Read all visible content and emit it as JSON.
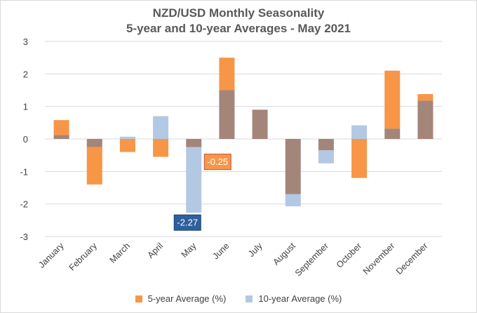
{
  "chart_data": {
    "type": "bar",
    "title": "NZD/USD Monthly Seasonality",
    "subtitle": "5-year and 10-year Averages - May 2021",
    "categories": [
      "January",
      "February",
      "March",
      "April",
      "May",
      "June",
      "July",
      "August",
      "September",
      "October",
      "November",
      "December"
    ],
    "series": [
      {
        "name": "5-year Average (%)",
        "color": "#F79646",
        "values": [
          0.58,
          -1.4,
          -0.4,
          -0.55,
          -0.25,
          2.5,
          0.9,
          -1.7,
          -0.35,
          -1.2,
          2.1,
          1.38
        ]
      },
      {
        "name": "10-year Average (%)",
        "color": "#B3C8E3",
        "values": [
          0.12,
          -0.25,
          0.07,
          0.7,
          -2.27,
          1.5,
          0.9,
          -2.07,
          -0.75,
          0.42,
          0.32,
          1.18
        ]
      }
    ],
    "overlap_color": "#A4857A",
    "ylim": [
      -3,
      3
    ],
    "yticks": [
      "3",
      "2",
      "1",
      "0",
      "-1",
      "-2",
      "-3"
    ],
    "grid": true,
    "legend_position": "bottom",
    "annotations": [
      {
        "label": "-0.25",
        "month": "May",
        "series": "5-year Average (%)",
        "bg": "#F79646",
        "border": "#C0504D"
      },
      {
        "label": "-2.27",
        "month": "May",
        "series": "10-year Average (%)",
        "bg": "#2E5F9E",
        "border": "#1F3E6B"
      }
    ]
  }
}
